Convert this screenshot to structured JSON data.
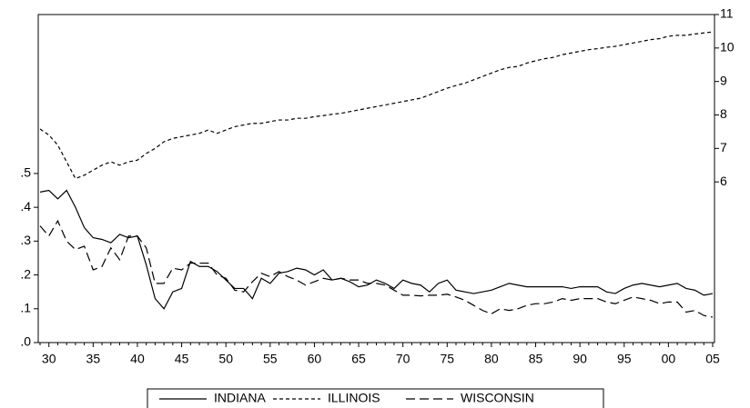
{
  "chart_data": {
    "type": "line",
    "categories": [
      null,
      "30",
      null,
      null,
      null,
      null,
      "35",
      null,
      null,
      null,
      null,
      "40",
      null,
      null,
      null,
      null,
      "45",
      null,
      null,
      null,
      null,
      "50",
      null,
      null,
      null,
      null,
      "55",
      null,
      null,
      null,
      null,
      "60",
      null,
      null,
      null,
      null,
      "65",
      null,
      null,
      null,
      null,
      "70",
      null,
      null,
      null,
      null,
      "75",
      null,
      null,
      null,
      null,
      "80",
      null,
      null,
      null,
      null,
      "85",
      null,
      null,
      null,
      null,
      "90",
      null,
      null,
      null,
      null,
      "95",
      null,
      null,
      null,
      null,
      "00",
      null,
      null,
      null,
      null,
      "05"
    ],
    "ylim": [
      0,
      0.97
    ],
    "yticks": [
      {
        "value": 0,
        "label": ".0"
      },
      {
        "value": 0.1,
        "label": ".1"
      },
      {
        "value": 0.2,
        "label": ".2"
      },
      {
        "value": 0.3,
        "label": ".3"
      },
      {
        "value": 0.4,
        "label": ".4"
      },
      {
        "value": 0.5,
        "label": ".5"
      }
    ],
    "y2lim": [
      1.2,
      11
    ],
    "y2ticks": [
      6,
      7,
      8,
      9,
      10,
      11
    ],
    "series": [
      {
        "name": "INDIANA",
        "color": "#000000",
        "dash": "solid",
        "values": [
          0.445,
          0.45,
          0.425,
          0.45,
          0.4,
          0.34,
          0.31,
          0.305,
          0.295,
          0.32,
          0.31,
          0.315,
          0.23,
          0.13,
          0.1,
          0.15,
          0.16,
          0.24,
          0.225,
          0.225,
          0.21,
          0.185,
          0.16,
          0.16,
          0.13,
          0.19,
          0.175,
          0.205,
          0.21,
          0.22,
          0.215,
          0.2,
          0.215,
          0.185,
          0.19,
          0.18,
          0.165,
          0.17,
          0.185,
          0.175,
          0.16,
          0.185,
          0.175,
          0.17,
          0.15,
          0.175,
          0.185,
          0.155,
          0.15,
          0.145,
          0.15,
          0.155,
          0.165,
          0.175,
          0.17,
          0.165,
          0.165,
          0.165,
          0.165,
          0.165,
          0.16,
          0.165,
          0.165,
          0.165,
          0.15,
          0.145,
          0.16,
          0.17,
          0.175,
          0.17,
          0.165,
          0.17,
          0.175,
          0.16,
          0.155,
          0.14,
          0.145
        ]
      },
      {
        "name": "ILLINOIS",
        "color": "#000000",
        "dash": "short",
        "axis": "y2",
        "values": [
          7.58,
          7.4,
          7.1,
          6.6,
          6.1,
          6.2,
          6.35,
          6.5,
          6.6,
          6.5,
          6.6,
          6.65,
          6.85,
          7.0,
          7.2,
          7.3,
          7.35,
          7.4,
          7.45,
          7.55,
          7.45,
          7.55,
          7.65,
          7.7,
          7.75,
          7.75,
          7.8,
          7.85,
          7.85,
          7.9,
          7.9,
          7.95,
          7.98,
          8.02,
          8.05,
          8.1,
          8.15,
          8.2,
          8.25,
          8.3,
          8.35,
          8.4,
          8.45,
          8.5,
          8.6,
          8.7,
          8.8,
          8.88,
          8.95,
          9.05,
          9.15,
          9.25,
          9.35,
          9.42,
          9.45,
          9.55,
          9.62,
          9.68,
          9.72,
          9.8,
          9.85,
          9.9,
          9.95,
          9.98,
          10.02,
          10.05,
          10.1,
          10.15,
          10.2,
          10.25,
          10.28,
          10.35,
          10.38,
          10.38,
          10.42,
          10.45,
          10.48
        ]
      },
      {
        "name": "WISCONSIN",
        "color": "#000000",
        "dash": "long",
        "values": [
          0.345,
          0.315,
          0.36,
          0.3,
          0.275,
          0.285,
          0.215,
          0.225,
          0.28,
          0.245,
          0.315,
          0.315,
          0.28,
          0.175,
          0.175,
          0.22,
          0.215,
          0.235,
          0.235,
          0.235,
          0.2,
          0.19,
          0.155,
          0.15,
          0.18,
          0.205,
          0.195,
          0.21,
          0.195,
          0.185,
          0.17,
          0.18,
          0.19,
          0.185,
          0.19,
          0.185,
          0.185,
          0.175,
          0.175,
          0.17,
          0.155,
          0.14,
          0.14,
          0.138,
          0.14,
          0.14,
          0.143,
          0.135,
          0.125,
          0.11,
          0.095,
          0.085,
          0.1,
          0.095,
          0.1,
          0.11,
          0.115,
          0.115,
          0.12,
          0.13,
          0.125,
          0.13,
          0.13,
          0.13,
          0.12,
          0.115,
          0.125,
          0.135,
          0.13,
          0.125,
          0.115,
          0.12,
          0.12,
          0.09,
          0.095,
          0.08,
          0.075
        ]
      }
    ]
  }
}
